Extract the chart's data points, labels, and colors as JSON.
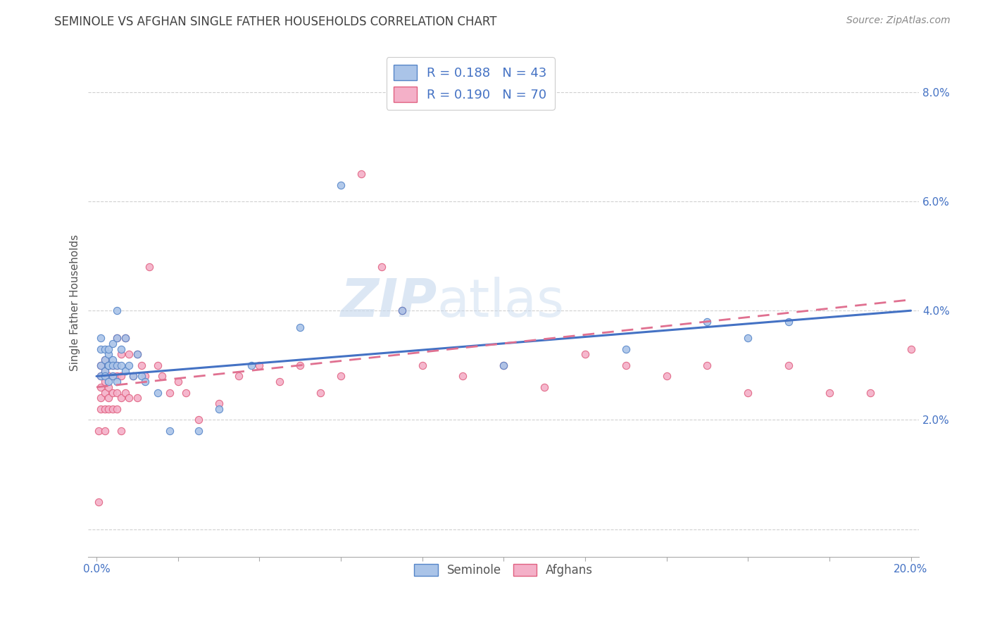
{
  "title": "SEMINOLE VS AFGHAN SINGLE FATHER HOUSEHOLDS CORRELATION CHART",
  "source": "Source: ZipAtlas.com",
  "ylabel": "Single Father Households",
  "xlim": [
    -0.002,
    0.202
  ],
  "ylim": [
    -0.005,
    0.088
  ],
  "yticks": [
    0.0,
    0.02,
    0.04,
    0.06,
    0.08
  ],
  "yticklabels": [
    "",
    "2.0%",
    "4.0%",
    "6.0%",
    "8.0%"
  ],
  "xticks": [
    0.0,
    0.02,
    0.04,
    0.06,
    0.08,
    0.1,
    0.12,
    0.14,
    0.16,
    0.18,
    0.2
  ],
  "xticklabels": [
    "0.0%",
    "",
    "",
    "",
    "",
    "",
    "",
    "",
    "",
    "",
    "20.0%"
  ],
  "background_color": "#ffffff",
  "grid_color": "#d0d0d0",
  "seminole_color": "#aac4e8",
  "afghan_color": "#f4b0c8",
  "seminole_edge_color": "#5585c8",
  "afghan_edge_color": "#e06080",
  "seminole_line_color": "#4472c4",
  "afghan_line_color": "#e07090",
  "watermark_zip": "ZIP",
  "watermark_atlas": "atlas",
  "axis_label_color": "#4472c4",
  "title_color": "#404040",
  "source_color": "#888888",
  "legend_label_color": "#4472c4",
  "bottom_legend_color": "#555555",
  "seminole_x": [
    0.001,
    0.001,
    0.001,
    0.001,
    0.002,
    0.002,
    0.002,
    0.002,
    0.003,
    0.003,
    0.003,
    0.003,
    0.003,
    0.004,
    0.004,
    0.004,
    0.004,
    0.005,
    0.005,
    0.005,
    0.005,
    0.006,
    0.006,
    0.007,
    0.007,
    0.008,
    0.009,
    0.01,
    0.011,
    0.012,
    0.015,
    0.018,
    0.025,
    0.03,
    0.038,
    0.05,
    0.06,
    0.075,
    0.1,
    0.13,
    0.15,
    0.16,
    0.17
  ],
  "seminole_y": [
    0.028,
    0.03,
    0.033,
    0.035,
    0.029,
    0.031,
    0.033,
    0.028,
    0.03,
    0.032,
    0.027,
    0.03,
    0.033,
    0.028,
    0.031,
    0.034,
    0.03,
    0.027,
    0.03,
    0.035,
    0.04,
    0.03,
    0.033,
    0.029,
    0.035,
    0.03,
    0.028,
    0.032,
    0.028,
    0.027,
    0.025,
    0.018,
    0.018,
    0.022,
    0.03,
    0.037,
    0.063,
    0.04,
    0.03,
    0.033,
    0.038,
    0.035,
    0.038
  ],
  "afghan_x": [
    0.0005,
    0.001,
    0.001,
    0.001,
    0.001,
    0.001,
    0.002,
    0.002,
    0.002,
    0.002,
    0.002,
    0.003,
    0.003,
    0.003,
    0.003,
    0.003,
    0.004,
    0.004,
    0.004,
    0.004,
    0.005,
    0.005,
    0.005,
    0.005,
    0.005,
    0.006,
    0.006,
    0.006,
    0.007,
    0.007,
    0.008,
    0.008,
    0.009,
    0.01,
    0.01,
    0.011,
    0.012,
    0.013,
    0.015,
    0.016,
    0.018,
    0.02,
    0.022,
    0.025,
    0.03,
    0.035,
    0.04,
    0.045,
    0.05,
    0.055,
    0.06,
    0.065,
    0.07,
    0.075,
    0.08,
    0.09,
    0.1,
    0.11,
    0.12,
    0.13,
    0.14,
    0.15,
    0.16,
    0.17,
    0.18,
    0.19,
    0.2,
    0.0005,
    0.002,
    0.006
  ],
  "afghan_y": [
    0.005,
    0.022,
    0.024,
    0.026,
    0.028,
    0.03,
    0.022,
    0.025,
    0.027,
    0.029,
    0.031,
    0.022,
    0.024,
    0.026,
    0.028,
    0.03,
    0.022,
    0.025,
    0.028,
    0.03,
    0.022,
    0.025,
    0.028,
    0.03,
    0.035,
    0.024,
    0.028,
    0.032,
    0.025,
    0.035,
    0.024,
    0.032,
    0.028,
    0.024,
    0.032,
    0.03,
    0.028,
    0.048,
    0.03,
    0.028,
    0.025,
    0.027,
    0.025,
    0.02,
    0.023,
    0.028,
    0.03,
    0.027,
    0.03,
    0.025,
    0.028,
    0.065,
    0.048,
    0.04,
    0.03,
    0.028,
    0.03,
    0.026,
    0.032,
    0.03,
    0.028,
    0.03,
    0.025,
    0.03,
    0.025,
    0.025,
    0.033,
    0.018,
    0.018,
    0.018
  ]
}
